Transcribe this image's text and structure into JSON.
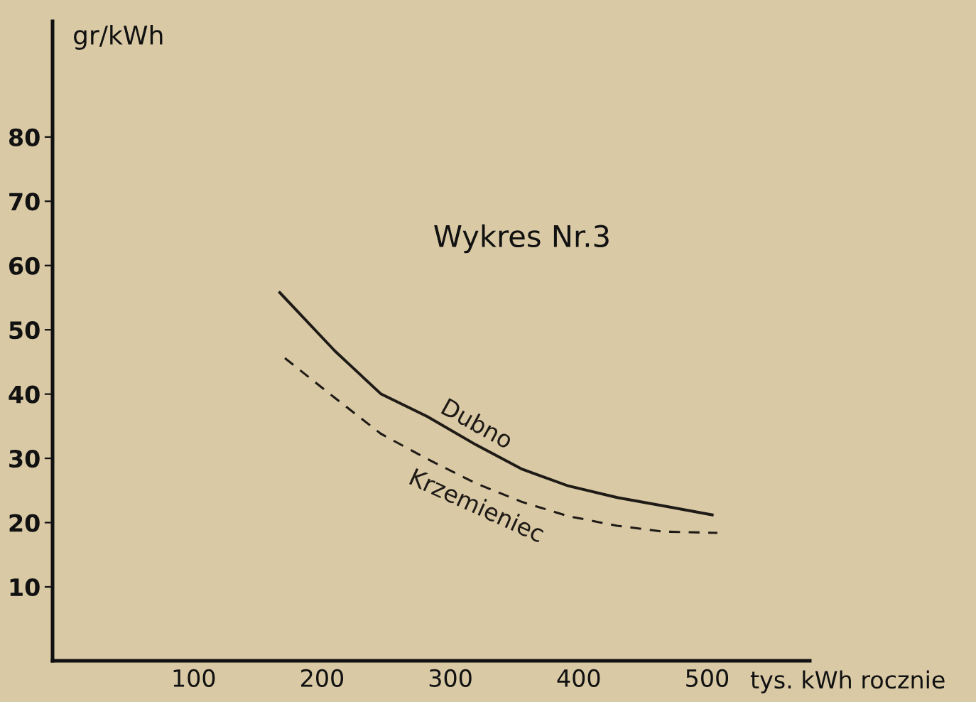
{
  "chart_data": {
    "type": "line",
    "title": "Wykres Nr.3",
    "xlabel": "tys. kWh rocznie",
    "ylabel": "gr/kWh",
    "xlim": [
      -10,
      580
    ],
    "ylim": [
      -1.5,
      98
    ],
    "xticks": [
      100,
      200,
      300,
      400,
      500
    ],
    "yticks": [
      10,
      20,
      30,
      40,
      50,
      60,
      70,
      80
    ],
    "grid": false,
    "legend": false,
    "marker": "none",
    "series": [
      {
        "name": "Dubno",
        "color": "#1e1a16",
        "line_style": "solid",
        "x": [
          167,
          210,
          246,
          282,
          320,
          356,
          392,
          430,
          466,
          504
        ],
        "values": [
          55.8,
          46.7,
          40.0,
          36.5,
          32.1,
          28.3,
          25.7,
          23.9,
          22.6,
          21.2
        ]
      },
      {
        "name": "Krzemieniec",
        "color": "#1e1a16",
        "line_style": "dashed",
        "x": [
          171,
          210,
          246,
          282,
          320,
          356,
          392,
          430,
          466,
          508
        ],
        "values": [
          45.6,
          39.4,
          33.8,
          29.9,
          26.1,
          23.2,
          21.0,
          19.5,
          18.6,
          18.4
        ]
      }
    ]
  }
}
